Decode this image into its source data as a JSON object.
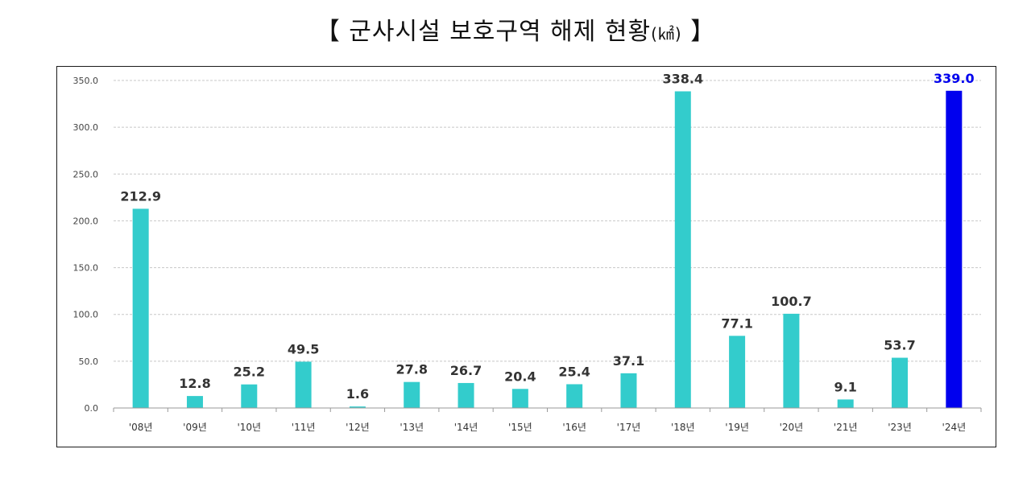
{
  "chart_data": {
    "type": "bar",
    "title": "【 군사시설 보호구역 해제 현황",
    "title_unit": "(㎢)",
    "title_close": "】",
    "categories": [
      "'08년",
      "'09년",
      "'10년",
      "'11년",
      "'12년",
      "'13년",
      "'14년",
      "'15년",
      "'16년",
      "'17년",
      "'18년",
      "'19년",
      "'20년",
      "'21년",
      "'23년",
      "'24년"
    ],
    "values": [
      212.9,
      12.8,
      25.2,
      49.5,
      1.6,
      27.8,
      26.7,
      20.4,
      25.4,
      37.1,
      338.4,
      77.1,
      100.7,
      9.1,
      53.7,
      339.0
    ],
    "value_labels": [
      "212.9",
      "12.8",
      "25.2",
      "49.5",
      "1.6",
      "27.8",
      "26.7",
      "20.4",
      "25.4",
      "37.1",
      "338.4",
      "77.1",
      "100.7",
      "9.1",
      "53.7",
      "339.0"
    ],
    "ylim": [
      0,
      350
    ],
    "yticks": [
      "0.0",
      "50.0",
      "100.0",
      "150.0",
      "200.0",
      "250.0",
      "300.0",
      "350.0"
    ],
    "ytick_values": [
      0,
      50,
      100,
      150,
      200,
      250,
      300,
      350
    ],
    "grid": true,
    "legend": "none",
    "highlight_index": 15,
    "colors": {
      "bar": "#33cccc",
      "highlight": "#0000ee",
      "grid": "#c8c8c8",
      "axis": "#999999"
    }
  }
}
